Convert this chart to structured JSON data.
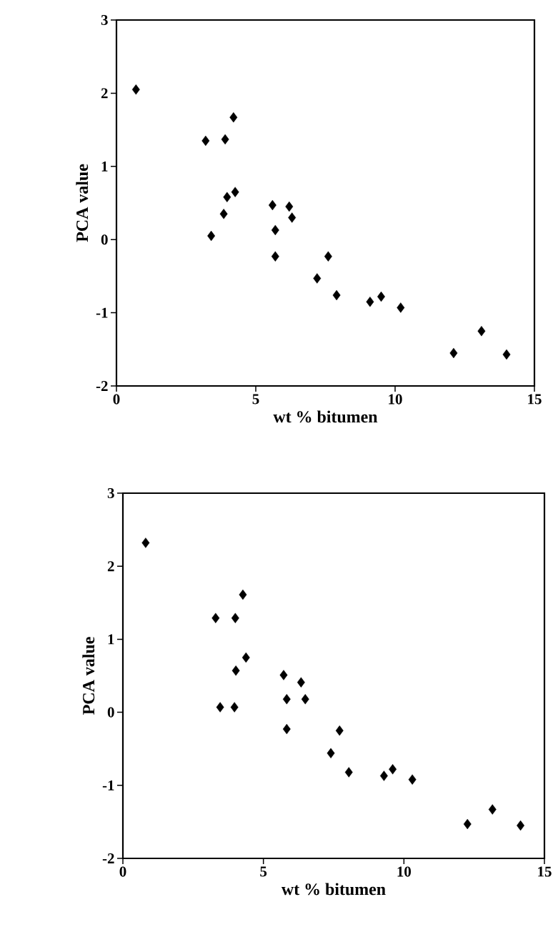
{
  "chart_data": [
    {
      "type": "scatter",
      "xlabel": "wt % bitumen",
      "ylabel": "PCA value",
      "xlim": [
        0,
        15
      ],
      "ylim": [
        -2,
        3
      ],
      "xticks": [
        0,
        5,
        10,
        15
      ],
      "yticks": [
        -2,
        -1,
        0,
        1,
        2,
        3
      ],
      "marker": "diamond",
      "color": "#000000",
      "x": [
        0.7,
        3.2,
        3.4,
        3.9,
        4.2,
        3.97,
        4.26,
        3.85,
        5.6,
        5.7,
        5.7,
        6.2,
        6.3,
        7.2,
        7.6,
        7.9,
        9.1,
        9.5,
        10.2,
        12.1,
        13.1,
        14.0
      ],
      "values": [
        2.05,
        1.35,
        0.05,
        1.37,
        1.67,
        0.58,
        0.65,
        0.35,
        0.47,
        0.13,
        -0.23,
        0.45,
        0.3,
        -0.53,
        -0.23,
        -0.76,
        -0.85,
        -0.78,
        -0.93,
        -1.55,
        -1.25,
        -1.57
      ]
    },
    {
      "type": "scatter",
      "xlabel": "wt % bitumen",
      "ylabel": "PCA value",
      "xlim": [
        0,
        15
      ],
      "ylim": [
        -2,
        3
      ],
      "xticks": [
        0,
        5,
        10,
        15
      ],
      "yticks": [
        -2,
        -1,
        0,
        1,
        2,
        3
      ],
      "marker": "diamond",
      "color": "#000000",
      "x": [
        0.81,
        3.3,
        4.0,
        4.27,
        4.38,
        4.02,
        3.46,
        3.97,
        5.72,
        6.34,
        5.83,
        6.49,
        5.83,
        7.71,
        7.4,
        8.04,
        9.29,
        9.6,
        10.3,
        12.26,
        13.15,
        14.15
      ],
      "values": [
        2.32,
        1.29,
        1.29,
        1.61,
        0.75,
        0.57,
        0.07,
        0.07,
        0.51,
        0.41,
        0.18,
        0.18,
        -0.23,
        -0.25,
        -0.56,
        -0.82,
        -0.87,
        -0.78,
        -0.92,
        -1.53,
        -1.33,
        -1.55
      ]
    }
  ]
}
